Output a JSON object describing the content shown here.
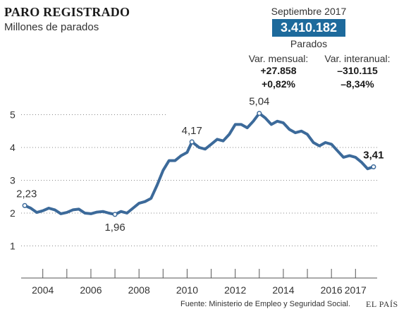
{
  "header": {
    "title": "PARO REGISTRADO",
    "subtitle": "Millones de parados"
  },
  "kpi": {
    "month": "Septiembre 2017",
    "value": "3.410.182",
    "unit": "Parados"
  },
  "variations": {
    "monthly": {
      "label": "Var. mensual:",
      "absolute": "+27.858",
      "percent": "+0,82%"
    },
    "yearly": {
      "label": "Var. interanual:",
      "absolute": "–310.115",
      "percent": "–8,34%"
    }
  },
  "footer": {
    "source": "Fuente: Ministerio de Empleo y Seguridad Social.",
    "brand": "EL PAÍS"
  },
  "colors": {
    "line": "#3c6a9a",
    "accent_box": "#1d6a9c",
    "grid": "#8a8a8a"
  },
  "chart_data": {
    "type": "line",
    "title": "PARO REGISTRADO",
    "ylabel": "Millones de parados",
    "ylim": [
      0,
      5.5
    ],
    "xlim": [
      2003.1,
      2017.9
    ],
    "yticks": [
      "1",
      "2",
      "3",
      "4",
      "5"
    ],
    "xticks": [
      "2004",
      "2006",
      "2008",
      "2010",
      "2012",
      "2014",
      "2016",
      "2017"
    ],
    "grid": "horizontal dotted + vertical ticks at each year",
    "series": [
      {
        "values": [
          [
            2003.25,
            2.23
          ],
          [
            2003.5,
            2.15
          ],
          [
            2003.75,
            2.02
          ],
          [
            2004.0,
            2.07
          ],
          [
            2004.25,
            2.15
          ],
          [
            2004.5,
            2.1
          ],
          [
            2004.75,
            1.98
          ],
          [
            2005.0,
            2.02
          ],
          [
            2005.25,
            2.1
          ],
          [
            2005.5,
            2.12
          ],
          [
            2005.75,
            2.0
          ],
          [
            2006.0,
            1.98
          ],
          [
            2006.25,
            2.03
          ],
          [
            2006.5,
            2.05
          ],
          [
            2006.75,
            2.0
          ],
          [
            2007.0,
            1.96
          ],
          [
            2007.25,
            2.05
          ],
          [
            2007.5,
            2.0
          ],
          [
            2007.75,
            2.15
          ],
          [
            2008.0,
            2.3
          ],
          [
            2008.25,
            2.35
          ],
          [
            2008.5,
            2.45
          ],
          [
            2008.75,
            2.85
          ],
          [
            2009.0,
            3.3
          ],
          [
            2009.25,
            3.6
          ],
          [
            2009.5,
            3.6
          ],
          [
            2009.75,
            3.75
          ],
          [
            2010.0,
            3.85
          ],
          [
            2010.2,
            4.17
          ],
          [
            2010.5,
            4.0
          ],
          [
            2010.75,
            3.95
          ],
          [
            2011.0,
            4.1
          ],
          [
            2011.25,
            4.25
          ],
          [
            2011.5,
            4.2
          ],
          [
            2011.75,
            4.4
          ],
          [
            2012.0,
            4.7
          ],
          [
            2012.25,
            4.7
          ],
          [
            2012.5,
            4.6
          ],
          [
            2012.75,
            4.8
          ],
          [
            2013.0,
            5.04
          ],
          [
            2013.25,
            4.9
          ],
          [
            2013.5,
            4.7
          ],
          [
            2013.75,
            4.8
          ],
          [
            2014.0,
            4.75
          ],
          [
            2014.25,
            4.55
          ],
          [
            2014.5,
            4.45
          ],
          [
            2014.75,
            4.5
          ],
          [
            2015.0,
            4.4
          ],
          [
            2015.25,
            4.15
          ],
          [
            2015.5,
            4.05
          ],
          [
            2015.75,
            4.15
          ],
          [
            2016.0,
            4.1
          ],
          [
            2016.25,
            3.9
          ],
          [
            2016.5,
            3.7
          ],
          [
            2016.75,
            3.75
          ],
          [
            2017.0,
            3.7
          ],
          [
            2017.25,
            3.55
          ],
          [
            2017.5,
            3.35
          ],
          [
            2017.75,
            3.41
          ]
        ]
      }
    ],
    "annotations": [
      {
        "x": 2003.25,
        "y": 2.23,
        "label": "2,23",
        "bold": false
      },
      {
        "x": 2007.0,
        "y": 1.96,
        "label": "1,96",
        "bold": false
      },
      {
        "x": 2010.2,
        "y": 4.17,
        "label": "4,17",
        "bold": false
      },
      {
        "x": 2013.0,
        "y": 5.04,
        "label": "5,04",
        "bold": false
      },
      {
        "x": 2017.75,
        "y": 3.41,
        "label": "3,41",
        "bold": true
      }
    ]
  }
}
